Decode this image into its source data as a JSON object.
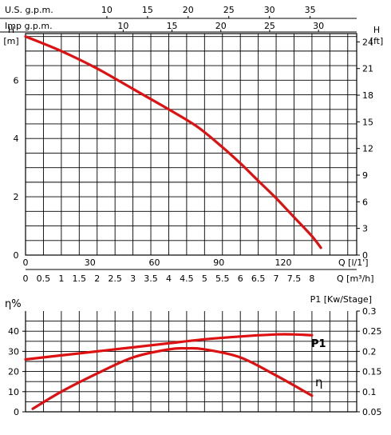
{
  "chart_data": [
    {
      "type": "line",
      "title": "",
      "y_left": {
        "label": "H",
        "unit": "[m]",
        "range": [
          0,
          7.6
        ],
        "ticks": [
          "0",
          "2",
          "4",
          "6"
        ]
      },
      "y_right": {
        "label": "H",
        "unit": "[ft]",
        "ticks": [
          "0",
          "3",
          "6",
          "9",
          "12",
          "15",
          "18",
          "21",
          "24"
        ]
      },
      "x_top_us": {
        "label": "U.S. g.p.m.",
        "ticks": [
          "10",
          "15",
          "20",
          "25",
          "30",
          "35"
        ]
      },
      "x_top_imp": {
        "label": "Imp g.p.m.",
        "ticks": [
          "10",
          "15",
          "20",
          "25",
          "30"
        ]
      },
      "x_lpm": {
        "label": "Q [l/1']",
        "ticks": [
          "0",
          "30",
          "60",
          "90",
          "120"
        ]
      },
      "x_m3h": {
        "label": "Q [m³/h]",
        "range": [
          0,
          9.25
        ],
        "ticks": [
          "0",
          "0.5",
          "1",
          "1.5",
          "2",
          "2.5",
          "3",
          "3.5",
          "4",
          "4.5",
          "5",
          "5.5",
          "6",
          "6.5",
          "7",
          "7.5",
          "8"
        ]
      },
      "grid": true,
      "series": [
        {
          "color": "#dd1111",
          "x": [
            0,
            1,
            2,
            3,
            4,
            4.8,
            5.5,
            6,
            6.5,
            7,
            7.5,
            8,
            8.25
          ],
          "y": [
            7.5,
            7.0,
            6.4,
            5.7,
            5.0,
            4.4,
            3.7,
            3.15,
            2.55,
            1.95,
            1.3,
            0.65,
            0.25
          ]
        }
      ]
    },
    {
      "type": "line",
      "y_left": {
        "label": "η%",
        "range": [
          0,
          50
        ],
        "ticks": [
          "0",
          "10",
          "20",
          "30",
          "40"
        ]
      },
      "y_right": {
        "label": "P1 [Kw/Stage]",
        "range": [
          0.05,
          0.3
        ],
        "ticks": [
          "0.05",
          "0.1",
          "0.15",
          "0.2",
          "0.25",
          "0.3"
        ]
      },
      "x": {
        "range": [
          0,
          9.25
        ]
      },
      "grid": true,
      "series": [
        {
          "name": "P1",
          "axis": "right",
          "color": "#dd1111",
          "x": [
            0,
            1,
            2,
            3,
            4,
            5,
            6,
            7,
            7.5,
            8
          ],
          "y": [
            0.18,
            0.19,
            0.2,
            0.21,
            0.22,
            0.23,
            0.237,
            0.242,
            0.242,
            0.24
          ]
        },
        {
          "name": "η",
          "axis": "left",
          "color": "#dd1111",
          "x": [
            0.2,
            1,
            2,
            3,
            4,
            4.5,
            5,
            6,
            7,
            8
          ],
          "y": [
            1.5,
            10,
            19,
            27,
            31,
            31.5,
            31,
            27,
            18,
            8
          ]
        }
      ]
    }
  ]
}
